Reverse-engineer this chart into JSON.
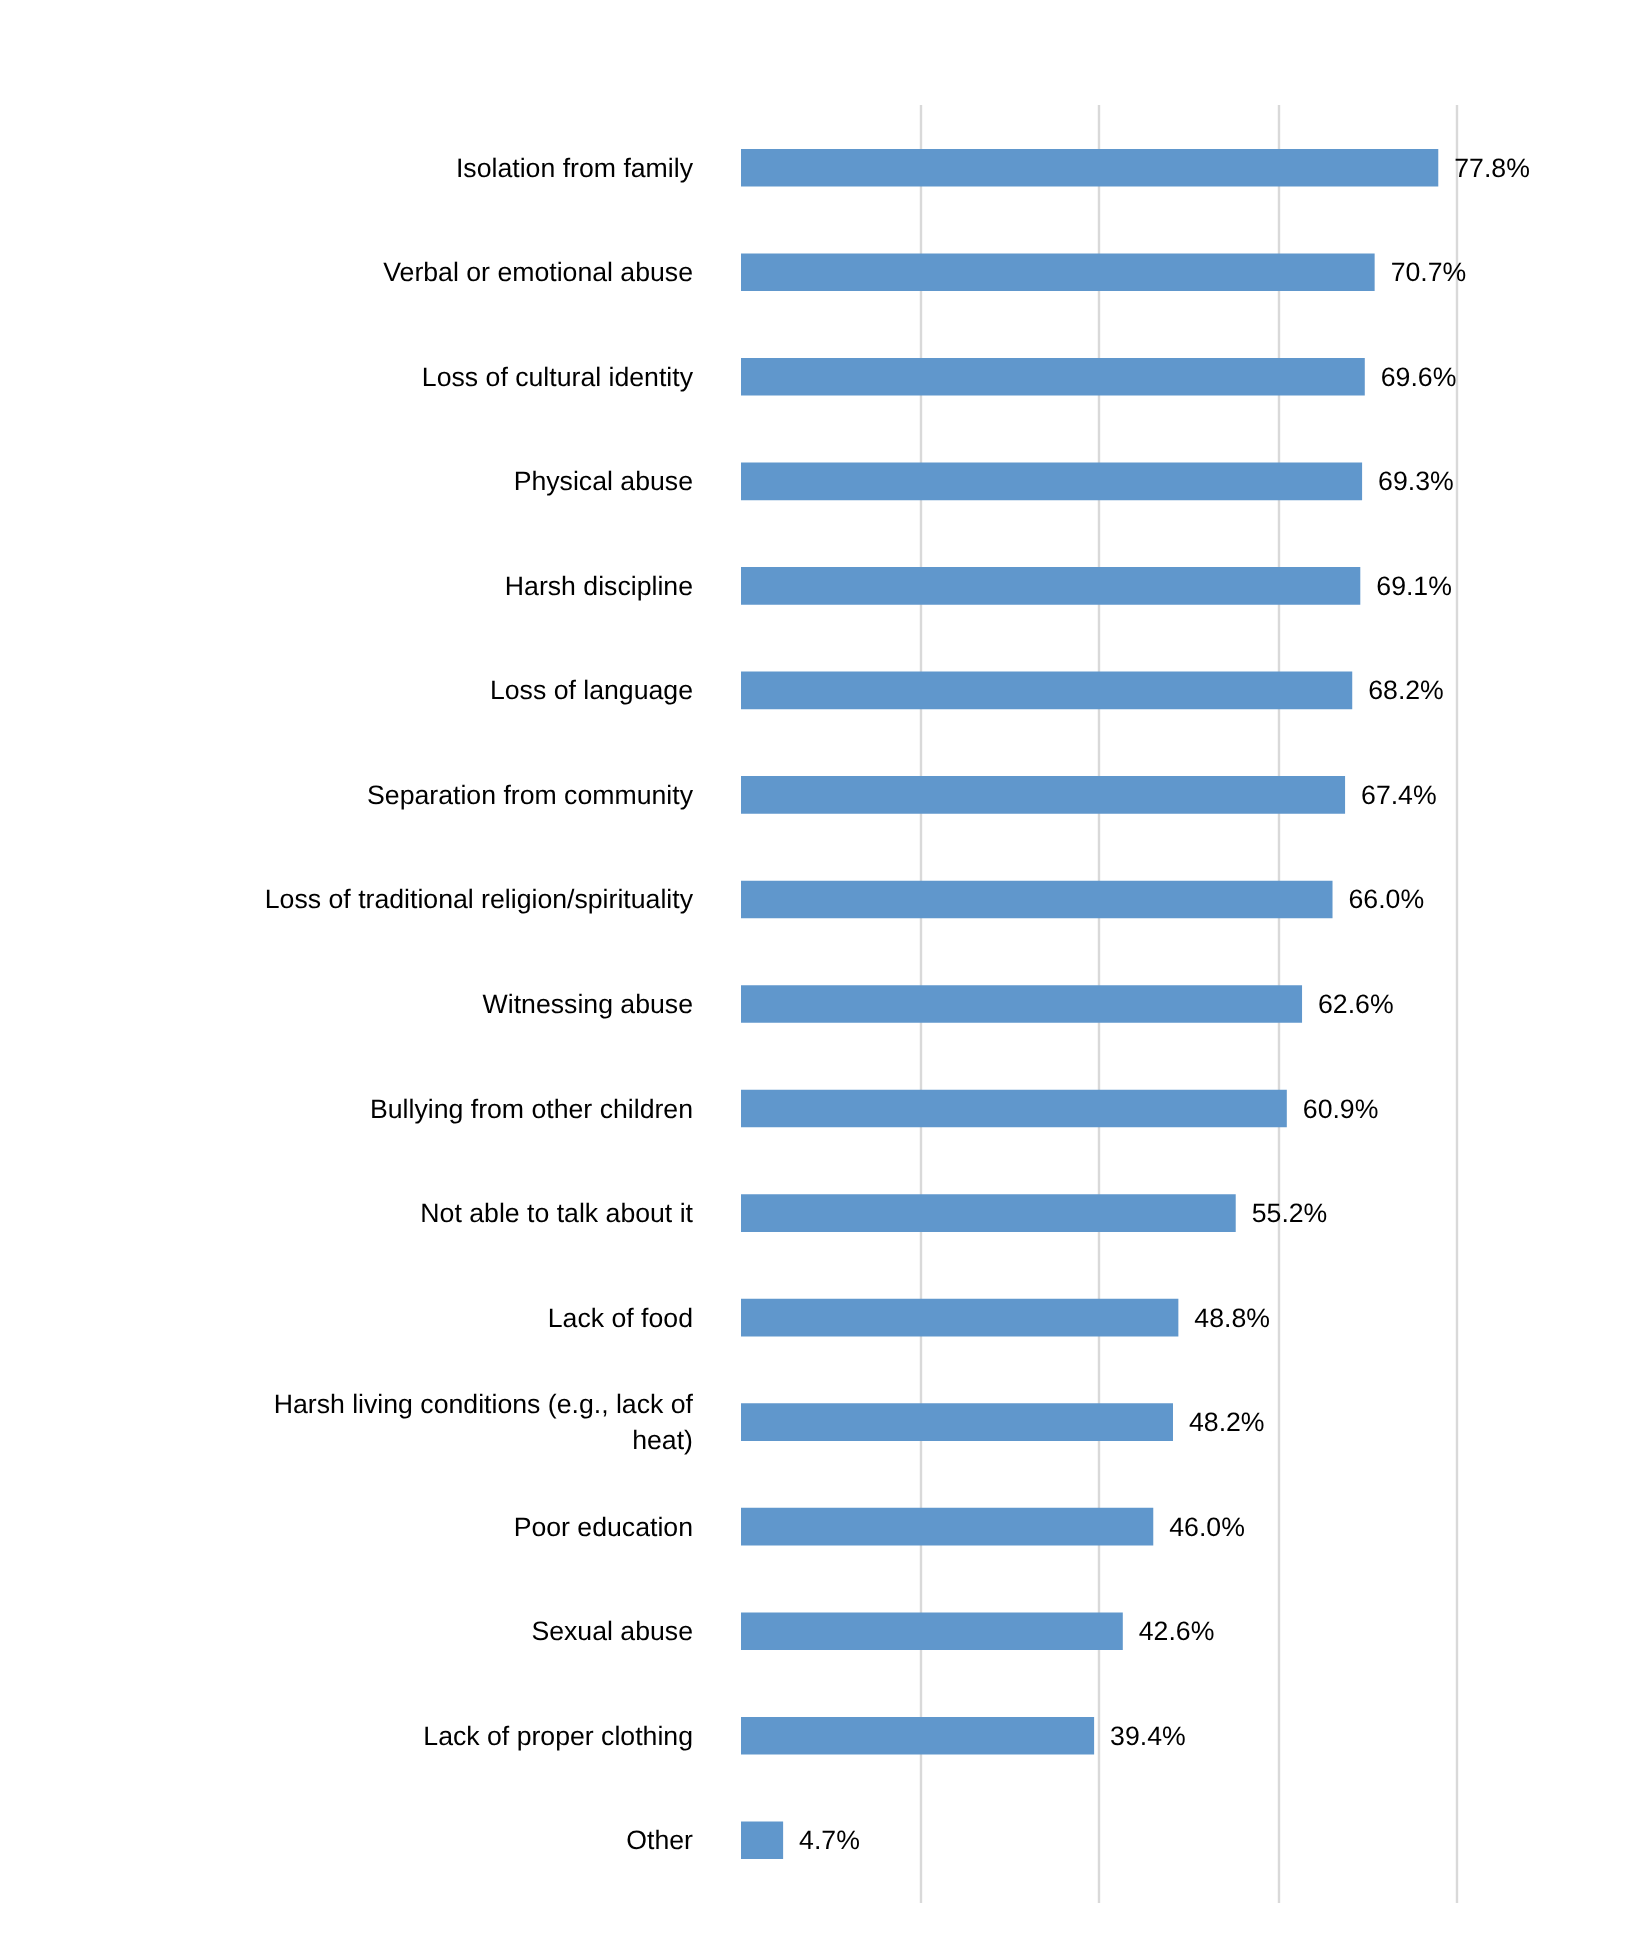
{
  "chart_data": {
    "type": "bar",
    "orientation": "horizontal",
    "categories": [
      "Isolation from family",
      "Verbal or emotional abuse",
      "Loss of cultural identity",
      "Physical abuse",
      "Harsh discipline",
      "Loss of language",
      "Separation from community",
      "Loss of traditional religion/spirituality",
      "Witnessing abuse",
      "Bullying from other children",
      "Not able to talk about it",
      "Lack of food",
      "Harsh living conditions (e.g., lack of heat)",
      "Poor education",
      "Sexual abuse",
      "Lack of proper clothing",
      "Other"
    ],
    "values": [
      77.8,
      70.7,
      69.6,
      69.3,
      69.1,
      68.2,
      67.4,
      66.0,
      62.6,
      60.9,
      55.2,
      48.8,
      48.2,
      46.0,
      42.6,
      39.4,
      4.7
    ],
    "value_labels": [
      "77.8%",
      "70.7%",
      "69.6%",
      "69.3%",
      "69.1%",
      "68.2%",
      "67.4%",
      "66.0%",
      "62.6%",
      "60.9%",
      "55.2%",
      "48.8%",
      "48.2%",
      "46.0%",
      "42.6%",
      "39.4%",
      "4.7%"
    ],
    "color": "#6097cc",
    "grid": "x",
    "tick_labels": "y"
  }
}
